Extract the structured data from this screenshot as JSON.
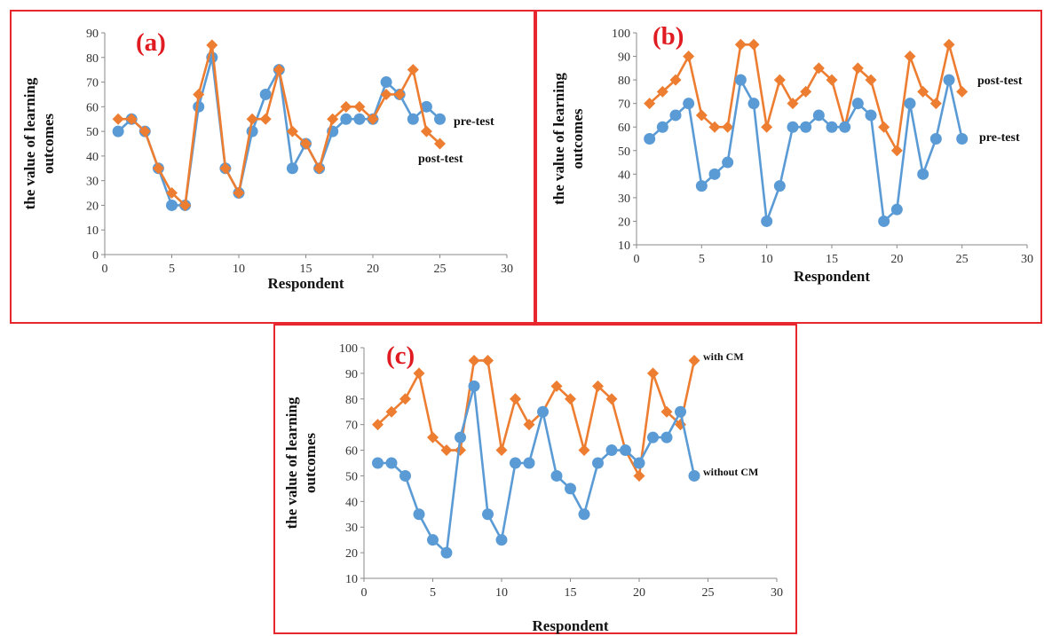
{
  "colors": {
    "border": "#e8262d",
    "blue": "#5b9bd5",
    "orange": "#ed7d31",
    "tag": "#e01c22"
  },
  "chart_data": [
    {
      "type": "line",
      "panel_label": "(a)",
      "xlabel": "Respondent",
      "ylabel": "the value of learning outcomes",
      "xlim": [
        0,
        30
      ],
      "ylim": [
        0,
        90
      ],
      "xticks": [
        0,
        5,
        10,
        15,
        20,
        25,
        30
      ],
      "yticks": [
        0,
        10,
        20,
        30,
        40,
        50,
        60,
        70,
        80,
        90
      ],
      "grid": false,
      "x": [
        1,
        2,
        3,
        4,
        5,
        6,
        7,
        8,
        9,
        10,
        11,
        12,
        13,
        14,
        15,
        16,
        17,
        18,
        19,
        20,
        21,
        22,
        23,
        24,
        25
      ],
      "series": [
        {
          "name": "pre-test",
          "color": "blue",
          "marker": "circle",
          "values": [
            50,
            55,
            50,
            35,
            20,
            20,
            60,
            80,
            35,
            25,
            50,
            65,
            75,
            35,
            45,
            35,
            50,
            55,
            55,
            55,
            70,
            65,
            55,
            60,
            55
          ]
        },
        {
          "name": "post-test",
          "color": "orange",
          "marker": "diamond",
          "values": [
            55,
            55,
            50,
            35,
            25,
            20,
            65,
            85,
            35,
            25,
            55,
            55,
            75,
            50,
            45,
            35,
            55,
            60,
            60,
            55,
            65,
            65,
            75,
            50,
            45
          ]
        }
      ]
    },
    {
      "type": "line",
      "panel_label": "(b)",
      "xlabel": "Respondent",
      "ylabel": "the value of learning outcomes",
      "xlim": [
        0,
        30
      ],
      "ylim": [
        10,
        100
      ],
      "xticks": [
        0,
        5,
        10,
        15,
        20,
        25,
        30
      ],
      "yticks": [
        10,
        20,
        30,
        40,
        50,
        60,
        70,
        80,
        90,
        100
      ],
      "grid": false,
      "x": [
        1,
        2,
        3,
        4,
        5,
        6,
        7,
        8,
        9,
        10,
        11,
        12,
        13,
        14,
        15,
        16,
        17,
        18,
        19,
        20,
        21,
        22,
        23,
        24,
        25
      ],
      "series": [
        {
          "name": "post-test",
          "color": "orange",
          "marker": "diamond",
          "values": [
            70,
            75,
            80,
            90,
            65,
            60,
            60,
            95,
            95,
            60,
            80,
            70,
            75,
            85,
            80,
            60,
            85,
            80,
            60,
            50,
            90,
            75,
            70,
            95,
            75
          ]
        },
        {
          "name": "pre-test",
          "color": "blue",
          "marker": "circle",
          "values": [
            55,
            60,
            65,
            70,
            35,
            40,
            45,
            80,
            70,
            20,
            35,
            60,
            60,
            65,
            60,
            60,
            70,
            65,
            20,
            25,
            70,
            40,
            55,
            80,
            55
          ]
        }
      ]
    },
    {
      "type": "line",
      "panel_label": "(c)",
      "xlabel": "Respondent",
      "ylabel": "the value of learning outcomes",
      "xlim": [
        0,
        30
      ],
      "ylim": [
        10,
        100
      ],
      "xticks": [
        0,
        5,
        10,
        15,
        20,
        25,
        30
      ],
      "yticks": [
        10,
        20,
        30,
        40,
        50,
        60,
        70,
        80,
        90,
        100
      ],
      "grid": false,
      "x": [
        1,
        2,
        3,
        4,
        5,
        6,
        7,
        8,
        9,
        10,
        11,
        12,
        13,
        14,
        15,
        16,
        17,
        18,
        19,
        20,
        21,
        22,
        23,
        24
      ],
      "series": [
        {
          "name": "with CM",
          "color": "orange",
          "marker": "diamond",
          "values": [
            70,
            75,
            80,
            90,
            65,
            60,
            60,
            95,
            95,
            60,
            80,
            70,
            75,
            85,
            80,
            60,
            85,
            80,
            60,
            50,
            90,
            75,
            70,
            95
          ]
        },
        {
          "name": "without CM",
          "color": "blue",
          "marker": "circle",
          "values": [
            55,
            55,
            50,
            35,
            25,
            20,
            65,
            85,
            35,
            25,
            55,
            55,
            75,
            50,
            45,
            35,
            55,
            60,
            60,
            55,
            65,
            65,
            75,
            50
          ]
        }
      ]
    }
  ]
}
